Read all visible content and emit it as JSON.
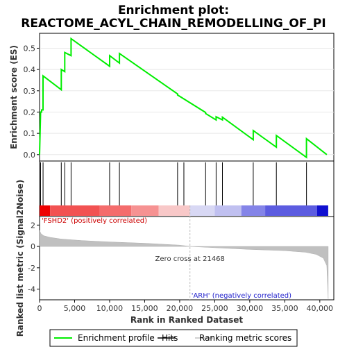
{
  "title_line1": "Enrichment plot:",
  "title_line2": "REACTOME_ACYL_CHAIN_REMODELLING_OF_PI",
  "chart_data": {
    "type": "line",
    "x_range": [
      0,
      42000
    ],
    "x_ticks": [
      0,
      5000,
      10000,
      15000,
      20000,
      25000,
      30000,
      35000,
      40000
    ],
    "x_tick_labels": [
      "0",
      "5,000",
      "10,000",
      "15,000",
      "20,000",
      "25,000",
      "30,000",
      "35,000",
      "40,000"
    ],
    "xlabel": "Rank in Ranked Dataset",
    "es_panel": {
      "ylabel": "Enrichment score (ES)",
      "ylim": [
        -0.03,
        0.57
      ],
      "y_ticks": [
        0.0,
        0.1,
        0.2,
        0.3,
        0.4,
        0.5
      ],
      "y_tick_labels": [
        "0.0",
        "0.1",
        "0.2",
        "0.3",
        "0.4",
        "0.5"
      ],
      "series": [
        {
          "name": "Enrichment profile",
          "color": "#00ee00",
          "x": [
            0,
            150,
            300,
            300,
            500,
            500,
            3100,
            3100,
            3600,
            3600,
            4500,
            4500,
            10000,
            10000,
            11400,
            11400,
            19700,
            19700,
            23700,
            23700,
            25200,
            25200,
            26100,
            26100,
            30500,
            30500,
            33800,
            33800,
            38100,
            38100,
            41000
          ],
          "y": [
            0.0,
            0.2,
            0.2,
            0.21,
            0.21,
            0.37,
            0.305,
            0.4,
            0.39,
            0.48,
            0.465,
            0.545,
            0.415,
            0.465,
            0.43,
            0.475,
            0.285,
            0.28,
            0.198,
            0.193,
            0.163,
            0.178,
            0.163,
            0.176,
            0.07,
            0.113,
            0.035,
            0.09,
            -0.013,
            0.075,
            0.0
          ]
        }
      ]
    },
    "hits": [
      150,
      500,
      3100,
      3600,
      4500,
      10000,
      11400,
      19700,
      20600,
      23700,
      25200,
      26100,
      30500,
      33800,
      38100
    ],
    "rank_metric_panel": {
      "ylabel": "Ranked list metric (Signal2Noise)",
      "ylim": [
        -5,
        2.8
      ],
      "y_ticks": [
        2,
        0,
        -2,
        -4
      ],
      "y_tick_labels": [
        "2",
        "0",
        "-2",
        "-4"
      ],
      "fill_color": "#c0c0c0",
      "x": [
        0,
        200,
        600,
        1500,
        3000,
        6000,
        10000,
        15000,
        20000,
        21468,
        25000,
        30000,
        35000,
        38000,
        39500,
        40500,
        41000,
        41200
      ],
      "y": [
        1.5,
        1.2,
        1.0,
        0.85,
        0.7,
        0.55,
        0.42,
        0.3,
        0.12,
        0.0,
        -0.12,
        -0.28,
        -0.4,
        -0.55,
        -0.75,
        -1.1,
        -1.8,
        -4.9
      ],
      "zero_cross_text": "Zero cross at 21468",
      "zero_cross": 21468,
      "positive_label": "'FSHD2' (positively correlated)",
      "negative_label": "'ARH' (negatively correlated)"
    },
    "color_bar": [
      {
        "from": 0,
        "to": 1500,
        "color": "#ee0000"
      },
      {
        "from": 1500,
        "to": 8600,
        "color": "#f25252"
      },
      {
        "from": 8600,
        "to": 13100,
        "color": "#f46c6c"
      },
      {
        "from": 13100,
        "to": 17000,
        "color": "#f69292"
      },
      {
        "from": 17000,
        "to": 21468,
        "color": "#f8c8c8"
      },
      {
        "from": 21468,
        "to": 25000,
        "color": "#d8d8f4"
      },
      {
        "from": 25000,
        "to": 28800,
        "color": "#c0c0f0"
      },
      {
        "from": 28800,
        "to": 32200,
        "color": "#8484e8"
      },
      {
        "from": 32200,
        "to": 39600,
        "color": "#5c5ce0"
      },
      {
        "from": 39600,
        "to": 41200,
        "color": "#1010d0"
      }
    ],
    "legend": [
      {
        "label": "Enrichment profile",
        "color": "#00ee00",
        "kind": "line"
      },
      {
        "label": "Hits",
        "color": "#000000",
        "kind": "line"
      },
      {
        "label": "Ranking metric scores",
        "color": "#c0c0c0",
        "kind": "line"
      }
    ]
  }
}
